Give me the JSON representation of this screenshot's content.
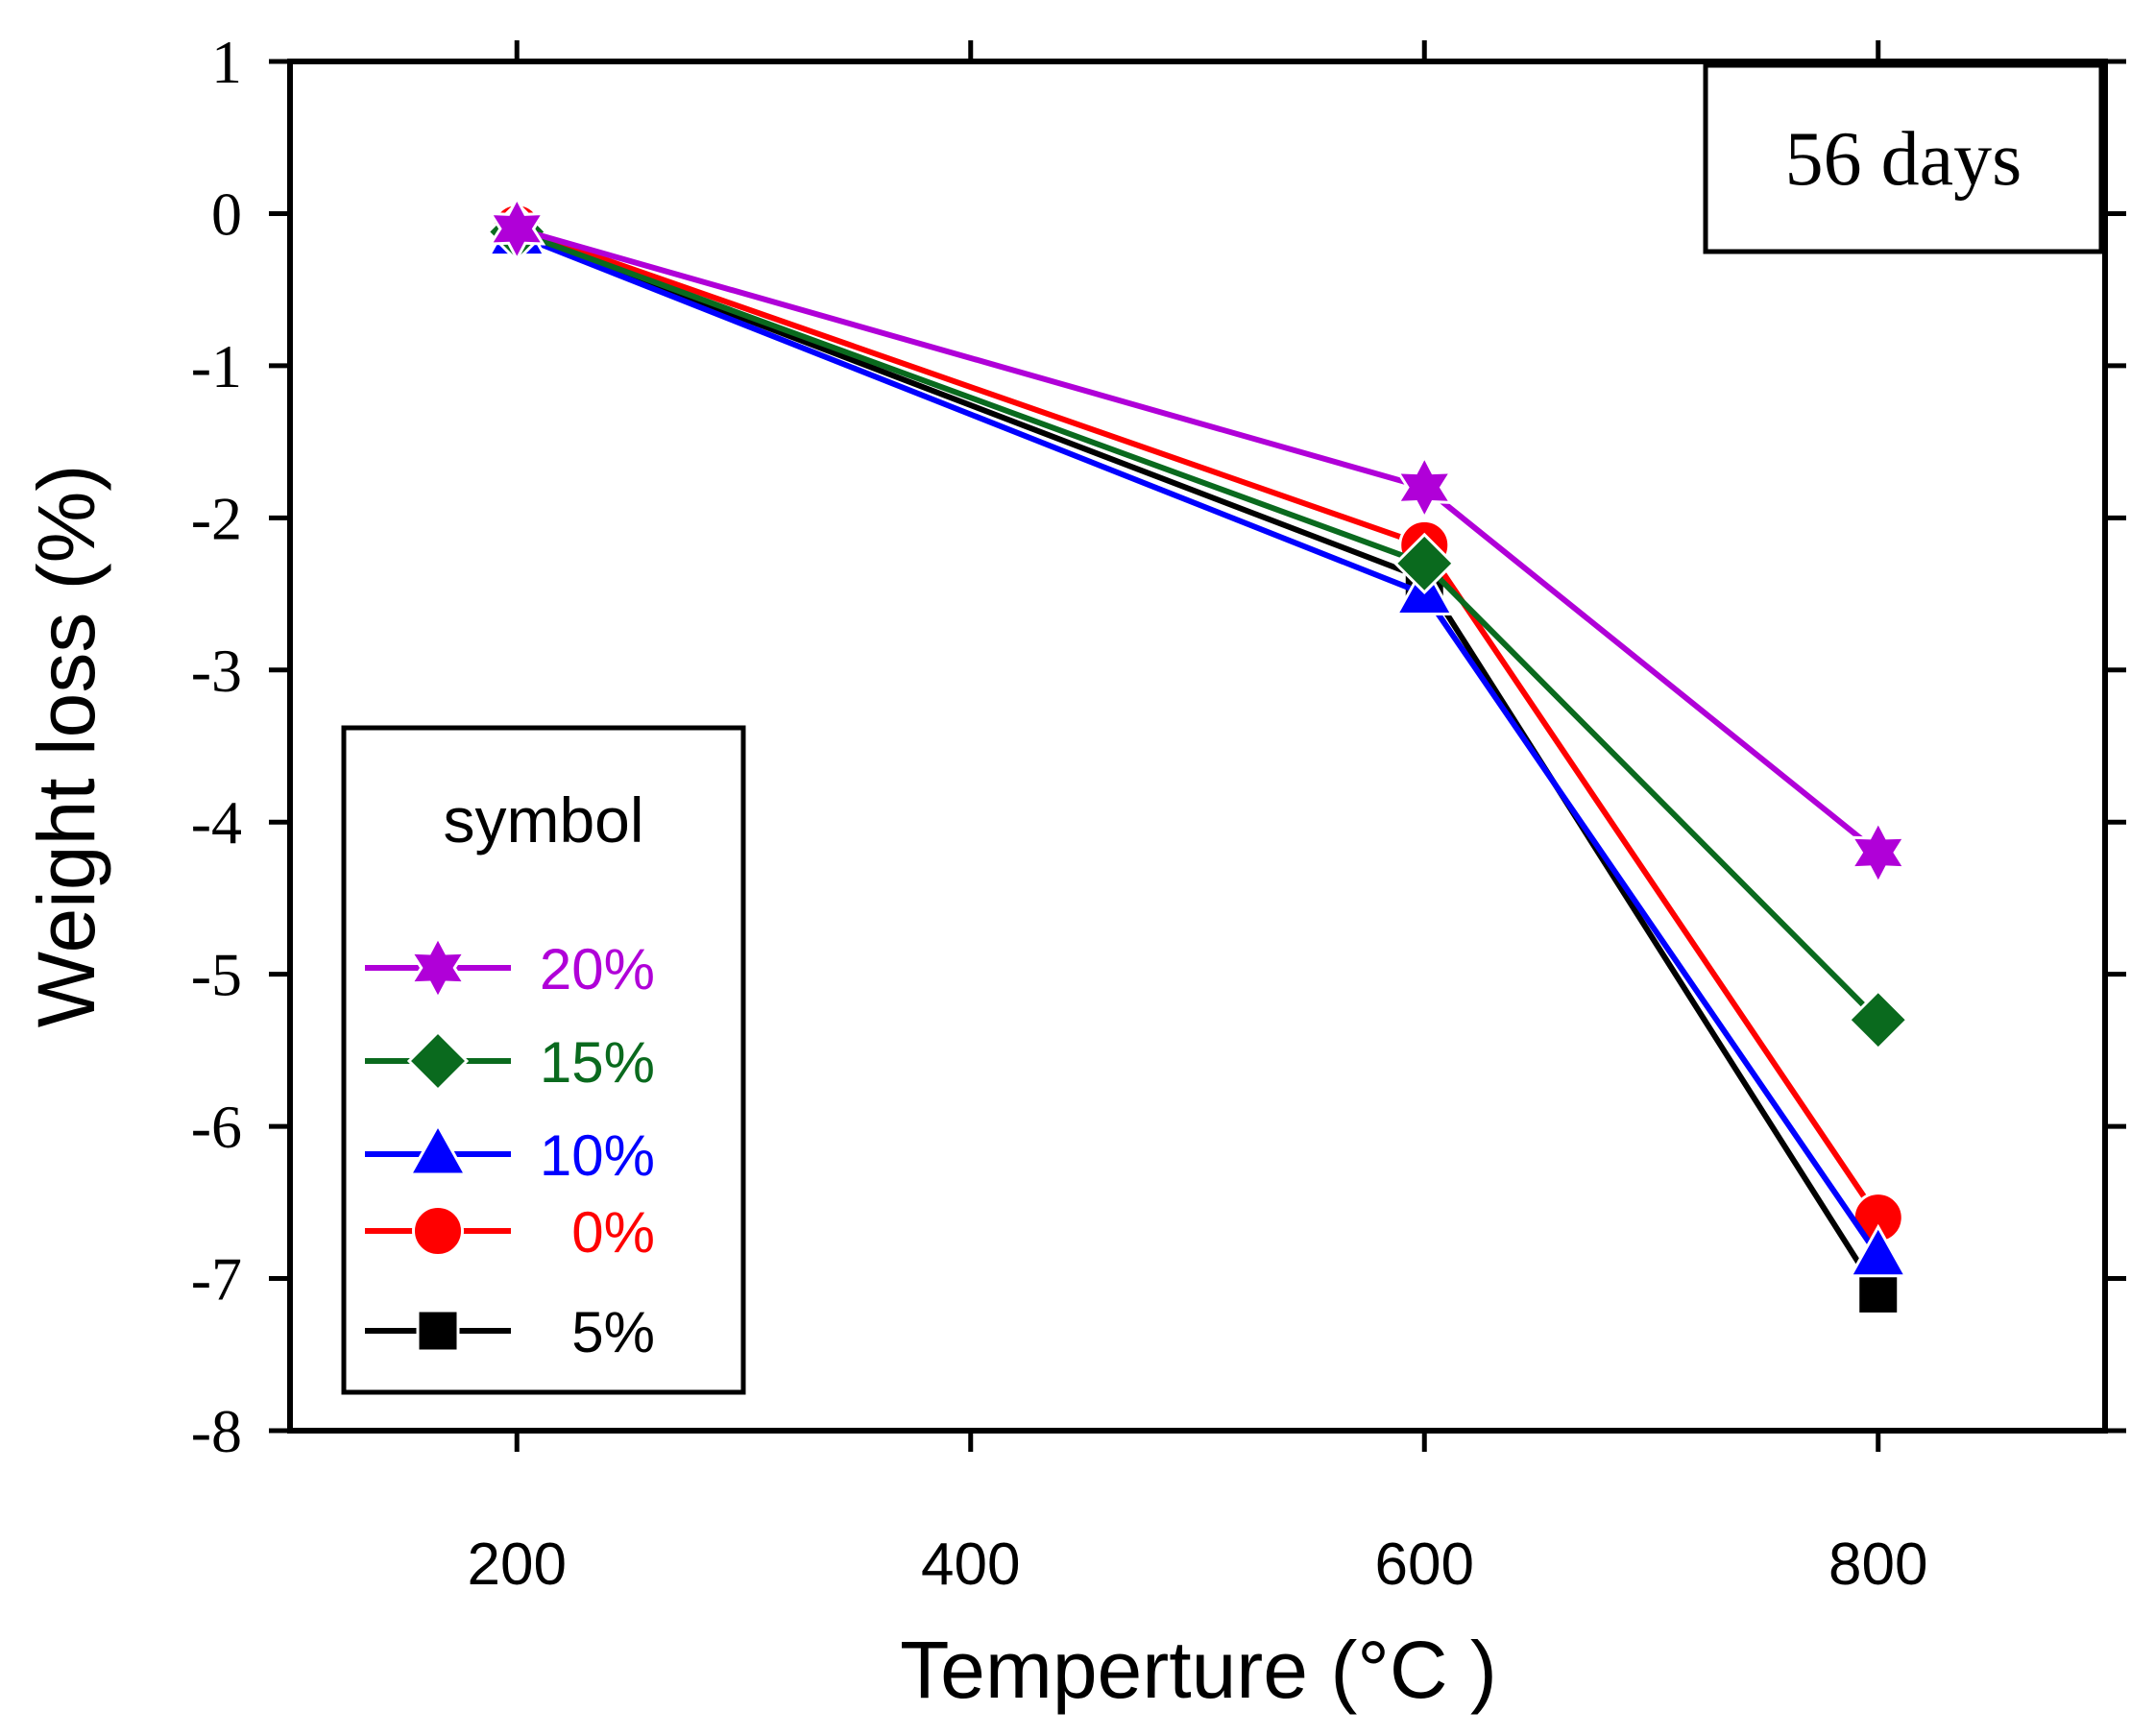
{
  "chart_data": {
    "type": "line",
    "title": "",
    "xlabel": "Temperture (°C )",
    "ylabel": "Weight loss (%)",
    "xlim": [
      100,
      900
    ],
    "ylim": [
      -8,
      1
    ],
    "xticks": [
      200,
      400,
      600,
      800
    ],
    "xtick_labels": [
      "200",
      "400",
      "600",
      "800"
    ],
    "yticks": [
      1,
      0,
      -1,
      -2,
      -3,
      -4,
      -5,
      -6,
      -7,
      -8
    ],
    "ytick_labels": [
      "1",
      "0",
      "-1",
      "-2",
      "-3",
      "-4",
      "-5",
      "-6",
      "-7",
      "-8"
    ],
    "grid": false,
    "annotation": "56 days",
    "legend": {
      "title": "symbol",
      "placement": "lower-left"
    },
    "x": [
      200,
      600,
      800
    ],
    "series": [
      {
        "name": "20%",
        "label": "20%",
        "color": "#b000d8",
        "marker": "star",
        "values": [
          -0.1,
          -1.8,
          -4.2
        ]
      },
      {
        "name": "15%",
        "label": "15%",
        "color": "#0a6a1e",
        "marker": "diamond",
        "values": [
          -0.12,
          -2.3,
          -5.3
        ]
      },
      {
        "name": "10%",
        "label": "10%",
        "color": "#0000ff",
        "marker": "triangle",
        "values": [
          -0.14,
          -2.5,
          -6.85
        ]
      },
      {
        "name": "0%",
        "label": " 0%",
        "color": "#ff0000",
        "marker": "circle",
        "values": [
          -0.1,
          -2.18,
          -6.6
        ]
      },
      {
        "name": "5%",
        "label": " 5%",
        "color": "#000000",
        "marker": "square",
        "values": [
          -0.12,
          -2.4,
          -7.1
        ]
      }
    ]
  }
}
